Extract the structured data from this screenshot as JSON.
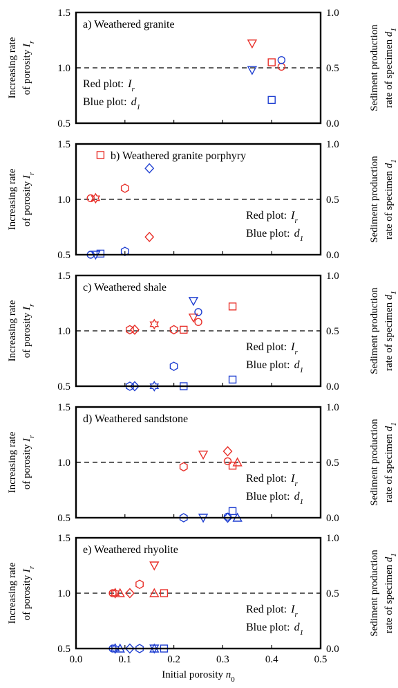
{
  "chart_data": {
    "type": "scatter",
    "x_axis": {
      "label": "Initial porosity n",
      "label_sub": "0",
      "range": [
        0.0,
        0.5
      ],
      "ticks": [
        "0.0",
        "0.1",
        "0.2",
        "0.3",
        "0.4",
        "0.5"
      ]
    },
    "left_axis": {
      "label_line1": "Increasing rate",
      "label_line2": "of porosity I",
      "label_sub": "r",
      "range": [
        0.5,
        1.5
      ],
      "ticks": [
        "0.5",
        "1.0",
        "1.5"
      ]
    },
    "right_axis": {
      "label_line1": "Sediment production",
      "label_line2": "rate of specimen d",
      "label_sub": "1",
      "range": [
        0.0,
        1.0
      ],
      "ticks": [
        "0.0",
        "0.5",
        "1.0"
      ]
    },
    "reference_line": {
      "left_value": 1.0,
      "style": "dashed"
    },
    "colors": {
      "red": "#e8302a",
      "blue": "#1f3fd1"
    },
    "legend": {
      "red_prefix": "Red plot:",
      "red_symbol": "I",
      "red_sub": "r",
      "blue_prefix": "Blue plot:",
      "blue_symbol": "d",
      "blue_sub": "1"
    },
    "panels": [
      {
        "title": "a) Weathered granite",
        "legend_placement": "bottom-left",
        "red_Ir": [
          {
            "x": 0.36,
            "y": 1.22,
            "marker": "triangle-down"
          },
          {
            "x": 0.4,
            "y": 1.05,
            "marker": "square"
          },
          {
            "x": 0.42,
            "y": 1.01,
            "marker": "circle"
          }
        ],
        "blue_d1": [
          {
            "x": 0.36,
            "y": 0.48,
            "marker": "triangle-down"
          },
          {
            "x": 0.4,
            "y": 0.21,
            "marker": "square"
          },
          {
            "x": 0.42,
            "y": 0.57,
            "marker": "circle"
          }
        ]
      },
      {
        "title": "b) Weathered granite porphyry",
        "legend_placement": "bottom-right",
        "red_Ir": [
          {
            "x": 0.03,
            "y": 1.01,
            "marker": "circle"
          },
          {
            "x": 0.04,
            "y": 1.01,
            "marker": "star"
          },
          {
            "x": 0.05,
            "y": 1.4,
            "marker": "square"
          },
          {
            "x": 0.1,
            "y": 1.1,
            "marker": "hexagon"
          },
          {
            "x": 0.15,
            "y": 0.66,
            "marker": "diamond"
          }
        ],
        "blue_d1": [
          {
            "x": 0.03,
            "y": 0.0,
            "marker": "circle"
          },
          {
            "x": 0.04,
            "y": 0.0,
            "marker": "triangle-down"
          },
          {
            "x": 0.05,
            "y": 0.01,
            "marker": "square"
          },
          {
            "x": 0.1,
            "y": 0.03,
            "marker": "hexagon"
          },
          {
            "x": 0.15,
            "y": 0.78,
            "marker": "diamond"
          }
        ]
      },
      {
        "title": "c) Weathered shale",
        "legend_placement": "bottom-right",
        "red_Ir": [
          {
            "x": 0.11,
            "y": 1.01,
            "marker": "hexagon"
          },
          {
            "x": 0.12,
            "y": 1.01,
            "marker": "diamond"
          },
          {
            "x": 0.16,
            "y": 1.06,
            "marker": "star"
          },
          {
            "x": 0.2,
            "y": 1.01,
            "marker": "hexagon"
          },
          {
            "x": 0.22,
            "y": 1.01,
            "marker": "square"
          },
          {
            "x": 0.24,
            "y": 1.12,
            "marker": "triangle-down"
          },
          {
            "x": 0.25,
            "y": 1.08,
            "marker": "circle"
          },
          {
            "x": 0.32,
            "y": 1.22,
            "marker": "square"
          }
        ],
        "blue_d1": [
          {
            "x": 0.11,
            "y": 0.0,
            "marker": "hexagon"
          },
          {
            "x": 0.12,
            "y": 0.0,
            "marker": "diamond"
          },
          {
            "x": 0.16,
            "y": 0.0,
            "marker": "star"
          },
          {
            "x": 0.2,
            "y": 0.18,
            "marker": "hexagon"
          },
          {
            "x": 0.22,
            "y": 0.0,
            "marker": "square"
          },
          {
            "x": 0.24,
            "y": 0.77,
            "marker": "triangle-down"
          },
          {
            "x": 0.25,
            "y": 0.67,
            "marker": "circle"
          },
          {
            "x": 0.32,
            "y": 0.06,
            "marker": "square"
          }
        ]
      },
      {
        "title": "d) Weathered sandstone",
        "legend_placement": "bottom-right",
        "red_Ir": [
          {
            "x": 0.22,
            "y": 0.96,
            "marker": "hexagon"
          },
          {
            "x": 0.26,
            "y": 1.07,
            "marker": "triangle-down"
          },
          {
            "x": 0.31,
            "y": 1.01,
            "marker": "circle"
          },
          {
            "x": 0.31,
            "y": 1.1,
            "marker": "diamond"
          },
          {
            "x": 0.32,
            "y": 0.97,
            "marker": "square"
          },
          {
            "x": 0.33,
            "y": 1.0,
            "marker": "triangle-up"
          }
        ],
        "blue_d1": [
          {
            "x": 0.22,
            "y": 0.0,
            "marker": "hexagon"
          },
          {
            "x": 0.26,
            "y": 0.0,
            "marker": "triangle-down"
          },
          {
            "x": 0.31,
            "y": 0.01,
            "marker": "circle"
          },
          {
            "x": 0.31,
            "y": 0.0,
            "marker": "diamond"
          },
          {
            "x": 0.32,
            "y": 0.06,
            "marker": "square"
          },
          {
            "x": 0.33,
            "y": 0.0,
            "marker": "triangle-up"
          }
        ]
      },
      {
        "title": "e) Weathered rhyolite",
        "legend_placement": "bottom-right",
        "red_Ir": [
          {
            "x": 0.075,
            "y": 1.0,
            "marker": "circle"
          },
          {
            "x": 0.08,
            "y": 1.0,
            "marker": "star"
          },
          {
            "x": 0.09,
            "y": 1.0,
            "marker": "triangle-up"
          },
          {
            "x": 0.11,
            "y": 1.0,
            "marker": "diamond"
          },
          {
            "x": 0.13,
            "y": 1.08,
            "marker": "hexagon"
          },
          {
            "x": 0.16,
            "y": 1.25,
            "marker": "triangle-down"
          },
          {
            "x": 0.16,
            "y": 1.0,
            "marker": "triangle-up"
          },
          {
            "x": 0.18,
            "y": 1.0,
            "marker": "square"
          }
        ],
        "blue_d1": [
          {
            "x": 0.075,
            "y": 0.0,
            "marker": "circle"
          },
          {
            "x": 0.08,
            "y": 0.0,
            "marker": "star"
          },
          {
            "x": 0.09,
            "y": 0.0,
            "marker": "triangle-up"
          },
          {
            "x": 0.11,
            "y": 0.0,
            "marker": "diamond"
          },
          {
            "x": 0.13,
            "y": 0.0,
            "marker": "hexagon"
          },
          {
            "x": 0.16,
            "y": 0.0,
            "marker": "triangle-down"
          },
          {
            "x": 0.16,
            "y": 0.0,
            "marker": "triangle-up"
          },
          {
            "x": 0.18,
            "y": 0.0,
            "marker": "square"
          }
        ]
      }
    ]
  }
}
